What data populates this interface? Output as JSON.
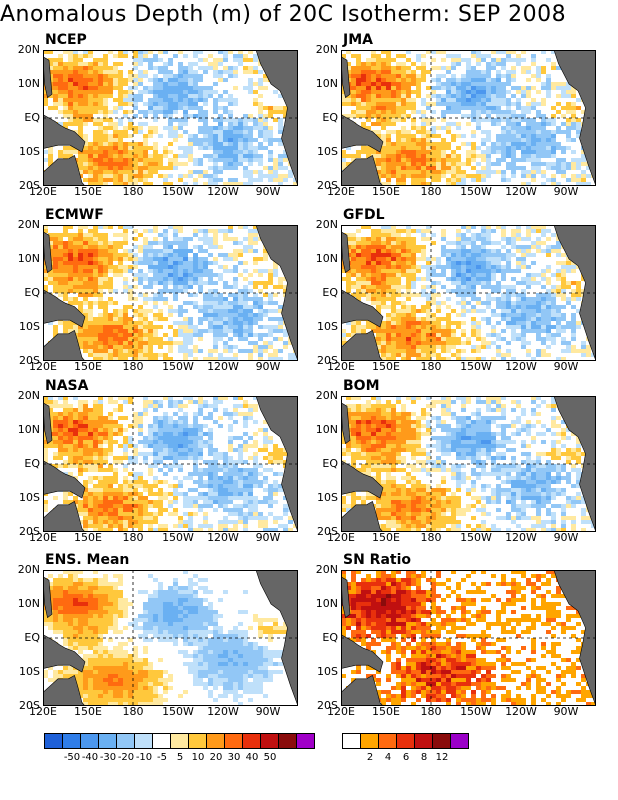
{
  "title": "Anomalous Depth (m) of 20C Isotherm: SEP 2008",
  "lat_labels": [
    "20N",
    "10N",
    "EQ",
    "10S",
    "20S"
  ],
  "lon_labels": [
    "120E",
    "150E",
    "180",
    "150W",
    "120W",
    "90W"
  ],
  "panels": [
    {
      "name": "NCEP",
      "kind": "anom",
      "seed": 11
    },
    {
      "name": "JMA",
      "kind": "anom",
      "seed": 23
    },
    {
      "name": "ECMWF",
      "kind": "anom",
      "seed": 37
    },
    {
      "name": "GFDL",
      "kind": "anom",
      "seed": 41
    },
    {
      "name": "NASA",
      "kind": "anom",
      "seed": 53
    },
    {
      "name": "BOM",
      "kind": "anom",
      "seed": 67
    },
    {
      "name": "ENS. Mean",
      "kind": "ens",
      "seed": 79
    },
    {
      "name": "SN Ratio",
      "kind": "sn",
      "seed": 97
    }
  ],
  "anomaly_colorbar": {
    "colors": [
      "#1e60d8",
      "#2f7de8",
      "#4c97ee",
      "#6ab0f2",
      "#92c7f6",
      "#bfe0fa",
      "#ffffff",
      "#ffe9a0",
      "#ffc83c",
      "#ff9a1a",
      "#ff6a10",
      "#e8300c",
      "#c01010",
      "#8a0c0c",
      "#a000c8"
    ],
    "labels": [
      "-50",
      "-40",
      "-30",
      "-20",
      "-10",
      "-5",
      "5",
      "10",
      "20",
      "30",
      "40",
      "50"
    ]
  },
  "sn_colorbar": {
    "colors": [
      "#ffffff",
      "#ffa500",
      "#ff6a10",
      "#e8300c",
      "#c01010",
      "#8a0c0c",
      "#9a00c8"
    ],
    "labels": [
      "2",
      "4",
      "6",
      "8",
      "12"
    ]
  },
  "land_color": "#666666"
}
